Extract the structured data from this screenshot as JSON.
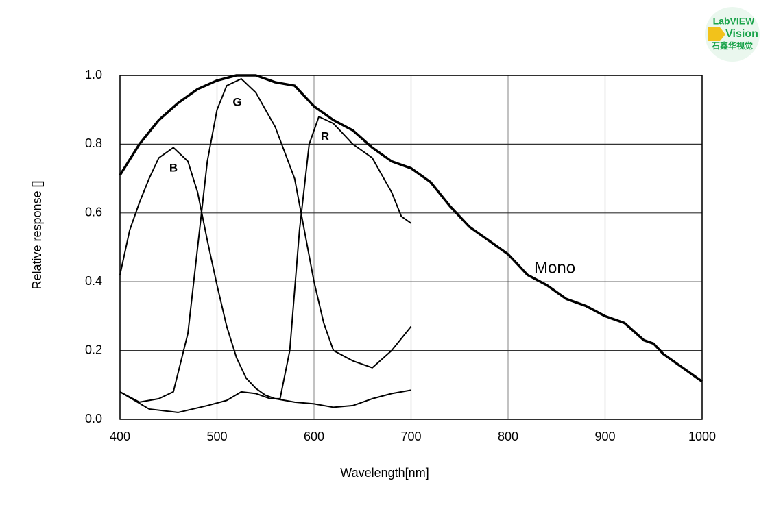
{
  "chart_data": {
    "type": "line",
    "x_label": "Wavelength[nm]",
    "y_label": "Relative response []",
    "xlim": [
      400,
      1000
    ],
    "xticks": [
      400,
      500,
      600,
      700,
      800,
      900,
      1000
    ],
    "ylim": [
      0,
      1
    ],
    "yticks": [
      {
        "value": 0,
        "label": "0.0"
      },
      0.2,
      0.4,
      0.6,
      0.8,
      {
        "value": 1,
        "label": "1.0"
      }
    ],
    "grid": true,
    "series": [
      {
        "name": "Mono",
        "color": "#000000",
        "x": [
          400,
          420,
          440,
          460,
          480,
          500,
          520,
          540,
          560,
          580,
          600,
          620,
          640,
          660,
          680,
          700,
          720,
          740,
          760,
          780,
          800,
          820,
          840,
          860,
          880,
          900,
          920,
          940,
          950,
          960,
          980,
          1000
        ],
        "values": [
          0.71,
          0.8,
          0.87,
          0.92,
          0.96,
          0.985,
          1.0,
          1.0,
          0.98,
          0.97,
          0.91,
          0.87,
          0.84,
          0.79,
          0.75,
          0.73,
          0.69,
          0.62,
          0.56,
          0.52,
          0.48,
          0.42,
          0.39,
          0.35,
          0.33,
          0.3,
          0.28,
          0.23,
          0.22,
          0.19,
          0.15,
          0.11
        ]
      },
      {
        "name": "B",
        "color": "#000000",
        "x": [
          400,
          410,
          420,
          430,
          440,
          455,
          470,
          480,
          490,
          500,
          510,
          520,
          530,
          540,
          550,
          560,
          580,
          600,
          620,
          640,
          660,
          680,
          700
        ],
        "values": [
          0.42,
          0.55,
          0.63,
          0.7,
          0.76,
          0.79,
          0.75,
          0.66,
          0.52,
          0.39,
          0.27,
          0.18,
          0.12,
          0.09,
          0.07,
          0.06,
          0.05,
          0.045,
          0.035,
          0.04,
          0.06,
          0.075,
          0.085
        ]
      },
      {
        "name": "G",
        "color": "#000000",
        "x": [
          400,
          420,
          440,
          455,
          470,
          480,
          490,
          500,
          510,
          525,
          540,
          560,
          580,
          590,
          600,
          610,
          620,
          640,
          660,
          680,
          700
        ],
        "values": [
          0.08,
          0.05,
          0.06,
          0.08,
          0.25,
          0.5,
          0.75,
          0.9,
          0.97,
          0.99,
          0.95,
          0.85,
          0.7,
          0.55,
          0.4,
          0.28,
          0.2,
          0.17,
          0.15,
          0.2,
          0.27
        ]
      },
      {
        "name": "R",
        "color": "#000000",
        "x": [
          400,
          430,
          460,
          490,
          510,
          525,
          540,
          555,
          565,
          575,
          585,
          595,
          605,
          620,
          640,
          660,
          680,
          690,
          700
        ],
        "values": [
          0.08,
          0.03,
          0.02,
          0.04,
          0.055,
          0.08,
          0.075,
          0.06,
          0.06,
          0.2,
          0.55,
          0.8,
          0.88,
          0.86,
          0.8,
          0.76,
          0.66,
          0.59,
          0.57
        ]
      }
    ]
  },
  "watermark": {
    "lines": [
      "LabVIEW",
      "Vision",
      "石鑫华视觉"
    ]
  }
}
